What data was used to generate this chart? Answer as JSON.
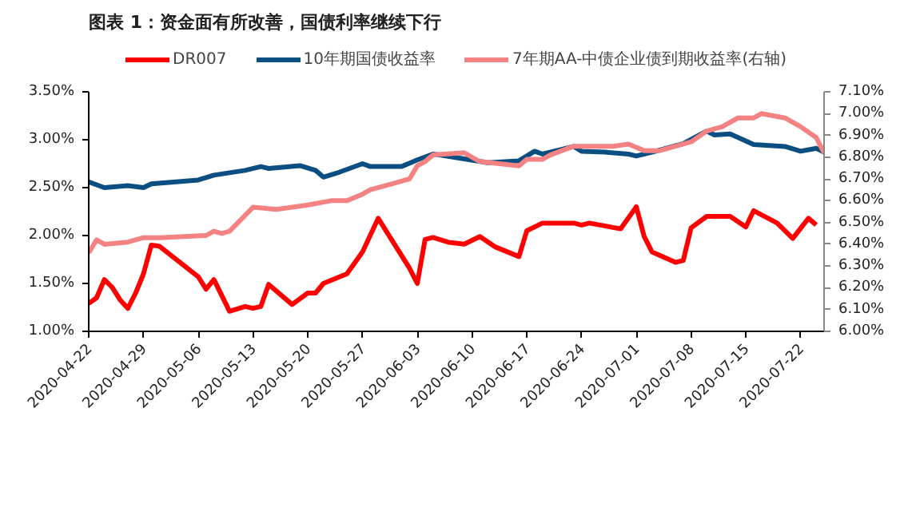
{
  "chart_data": {
    "type": "line",
    "title": "图表 1：资金面有所改善，国债利率继续下行",
    "xlim": [
      "2020-04-22",
      "2020-07-25"
    ],
    "xticks": [
      {
        "value": "2020-04-22",
        "label": "2020-04-22"
      },
      {
        "value": "2020-04-29",
        "label": "2020-04-29"
      },
      {
        "value": "2020-05-06",
        "label": "2020-05-06"
      },
      {
        "value": "2020-05-13",
        "label": "2020-05-13"
      },
      {
        "value": "2020-05-20",
        "label": "2020-05-20"
      },
      {
        "value": "2020-05-27",
        "label": "2020-05-27"
      },
      {
        "value": "2020-06-03",
        "label": "2020-06-03"
      },
      {
        "value": "2020-06-10",
        "label": "2020-06-10"
      },
      {
        "value": "2020-06-17",
        "label": "2020-06-17"
      },
      {
        "value": "2020-06-24",
        "label": "2020-06-24"
      },
      {
        "value": "2020-07-01",
        "label": "2020-07-01"
      },
      {
        "value": "2020-07-08",
        "label": "2020-07-08"
      },
      {
        "value": "2020-07-15",
        "label": "2020-07-15"
      },
      {
        "value": "2020-07-22",
        "label": "2020-07-22"
      }
    ],
    "ylim": [
      1.0,
      3.5
    ],
    "yticks": [
      {
        "value": 1.0,
        "label": "1.00%"
      },
      {
        "value": 1.5,
        "label": "1.50%"
      },
      {
        "value": 2.0,
        "label": "2.00%"
      },
      {
        "value": 2.5,
        "label": "2.50%"
      },
      {
        "value": 3.0,
        "label": "3.00%"
      },
      {
        "value": 3.5,
        "label": "3.50%"
      }
    ],
    "y2lim": [
      6.0,
      7.1
    ],
    "y2ticks": [
      {
        "value": 6.0,
        "label": "6.00%"
      },
      {
        "value": 6.1,
        "label": "6.10%"
      },
      {
        "value": 6.2,
        "label": "6.20%"
      },
      {
        "value": 6.3,
        "label": "6.30%"
      },
      {
        "value": 6.4,
        "label": "6.40%"
      },
      {
        "value": 6.5,
        "label": "6.50%"
      },
      {
        "value": 6.6,
        "label": "6.60%"
      },
      {
        "value": 6.7,
        "label": "6.70%"
      },
      {
        "value": 6.8,
        "label": "6.80%"
      },
      {
        "value": 6.9,
        "label": "6.90%"
      },
      {
        "value": 7.0,
        "label": "7.00%"
      },
      {
        "value": 7.1,
        "label": "7.10%"
      }
    ],
    "legend": "top",
    "grid": false,
    "series": [
      {
        "name": "DR007",
        "color": "#ff0000",
        "x": [
          "2020-04-22",
          "2020-04-23",
          "2020-04-24",
          "2020-04-25",
          "2020-04-26",
          "2020-04-27",
          "2020-04-28",
          "2020-04-29",
          "2020-04-30",
          "2020-05-01",
          "2020-05-06",
          "2020-05-07",
          "2020-05-08",
          "2020-05-10",
          "2020-05-12",
          "2020-05-13",
          "2020-05-14",
          "2020-05-15",
          "2020-05-18",
          "2020-05-20",
          "2020-05-21",
          "2020-05-22",
          "2020-05-25",
          "2020-05-27",
          "2020-05-29",
          "2020-06-02",
          "2020-06-03",
          "2020-06-04",
          "2020-06-05",
          "2020-06-07",
          "2020-06-09",
          "2020-06-11",
          "2020-06-13",
          "2020-06-16",
          "2020-06-17",
          "2020-06-19",
          "2020-06-23",
          "2020-06-24",
          "2020-06-25",
          "2020-06-29",
          "2020-07-01",
          "2020-07-02",
          "2020-07-03",
          "2020-07-06",
          "2020-07-07",
          "2020-07-08",
          "2020-07-10",
          "2020-07-13",
          "2020-07-15",
          "2020-07-16",
          "2020-07-19",
          "2020-07-21",
          "2020-07-23",
          "2020-07-24"
        ],
        "values": [
          1.29,
          1.35,
          1.54,
          1.46,
          1.33,
          1.24,
          1.4,
          1.6,
          1.9,
          1.89,
          1.57,
          1.44,
          1.54,
          1.21,
          1.26,
          1.24,
          1.26,
          1.49,
          1.28,
          1.4,
          1.4,
          1.5,
          1.6,
          1.83,
          2.18,
          1.66,
          1.5,
          1.96,
          1.98,
          1.93,
          1.91,
          1.99,
          1.88,
          1.78,
          2.05,
          2.13,
          2.13,
          2.11,
          2.13,
          2.07,
          2.3,
          1.99,
          1.83,
          1.72,
          1.74,
          2.08,
          2.2,
          2.2,
          2.09,
          2.26,
          2.13,
          1.97,
          2.18,
          2.11
        ]
      },
      {
        "name": "10年期国债收益率",
        "color": "#0b4f82",
        "x": [
          "2020-04-22",
          "2020-04-24",
          "2020-04-27",
          "2020-04-29",
          "2020-04-30",
          "2020-05-06",
          "2020-05-08",
          "2020-05-12",
          "2020-05-14",
          "2020-05-15",
          "2020-05-19",
          "2020-05-21",
          "2020-05-22",
          "2020-05-24",
          "2020-05-27",
          "2020-05-28",
          "2020-06-01",
          "2020-06-03",
          "2020-06-05",
          "2020-06-06",
          "2020-06-09",
          "2020-06-12",
          "2020-06-16",
          "2020-06-18",
          "2020-06-19",
          "2020-06-23",
          "2020-06-24",
          "2020-06-27",
          "2020-06-30",
          "2020-07-01",
          "2020-07-03",
          "2020-07-07",
          "2020-07-10",
          "2020-07-11",
          "2020-07-13",
          "2020-07-16",
          "2020-07-20",
          "2020-07-22",
          "2020-07-24",
          "2020-07-25"
        ],
        "values": [
          2.56,
          2.5,
          2.52,
          2.5,
          2.54,
          2.58,
          2.63,
          2.68,
          2.72,
          2.7,
          2.73,
          2.68,
          2.61,
          2.66,
          2.75,
          2.72,
          2.72,
          2.79,
          2.85,
          2.84,
          2.8,
          2.76,
          2.78,
          2.88,
          2.85,
          2.93,
          2.88,
          2.87,
          2.85,
          2.83,
          2.87,
          2.96,
          3.09,
          3.05,
          3.06,
          2.95,
          2.93,
          2.88,
          2.91,
          2.87
        ]
      },
      {
        "name": "7年期AA-中债企业债到期收益率(右轴)",
        "color": "#f48282",
        "axis": "y2",
        "x": [
          "2020-04-22",
          "2020-04-23",
          "2020-04-24",
          "2020-04-27",
          "2020-04-29",
          "2020-05-01",
          "2020-05-07",
          "2020-05-08",
          "2020-05-09",
          "2020-05-10",
          "2020-05-13",
          "2020-05-16",
          "2020-05-20",
          "2020-05-23",
          "2020-05-25",
          "2020-05-27",
          "2020-05-28",
          "2020-05-31",
          "2020-06-02",
          "2020-06-03",
          "2020-06-04",
          "2020-06-05",
          "2020-06-09",
          "2020-06-11",
          "2020-06-16",
          "2020-06-17",
          "2020-06-19",
          "2020-06-20",
          "2020-06-23",
          "2020-06-26",
          "2020-06-28",
          "2020-06-30",
          "2020-07-02",
          "2020-07-04",
          "2020-07-08",
          "2020-07-10",
          "2020-07-12",
          "2020-07-14",
          "2020-07-16",
          "2020-07-17",
          "2020-07-20",
          "2020-07-22",
          "2020-07-24",
          "2020-07-25"
        ],
        "values": [
          6.36,
          6.42,
          6.4,
          6.41,
          6.43,
          6.43,
          6.44,
          6.46,
          6.45,
          6.46,
          6.57,
          6.56,
          6.58,
          6.6,
          6.6,
          6.63,
          6.65,
          6.68,
          6.7,
          6.76,
          6.78,
          6.81,
          6.82,
          6.78,
          6.76,
          6.79,
          6.79,
          6.81,
          6.85,
          6.85,
          6.85,
          6.86,
          6.83,
          6.83,
          6.87,
          6.92,
          6.94,
          6.98,
          6.98,
          7.0,
          6.98,
          6.94,
          6.89,
          6.82
        ]
      }
    ]
  }
}
